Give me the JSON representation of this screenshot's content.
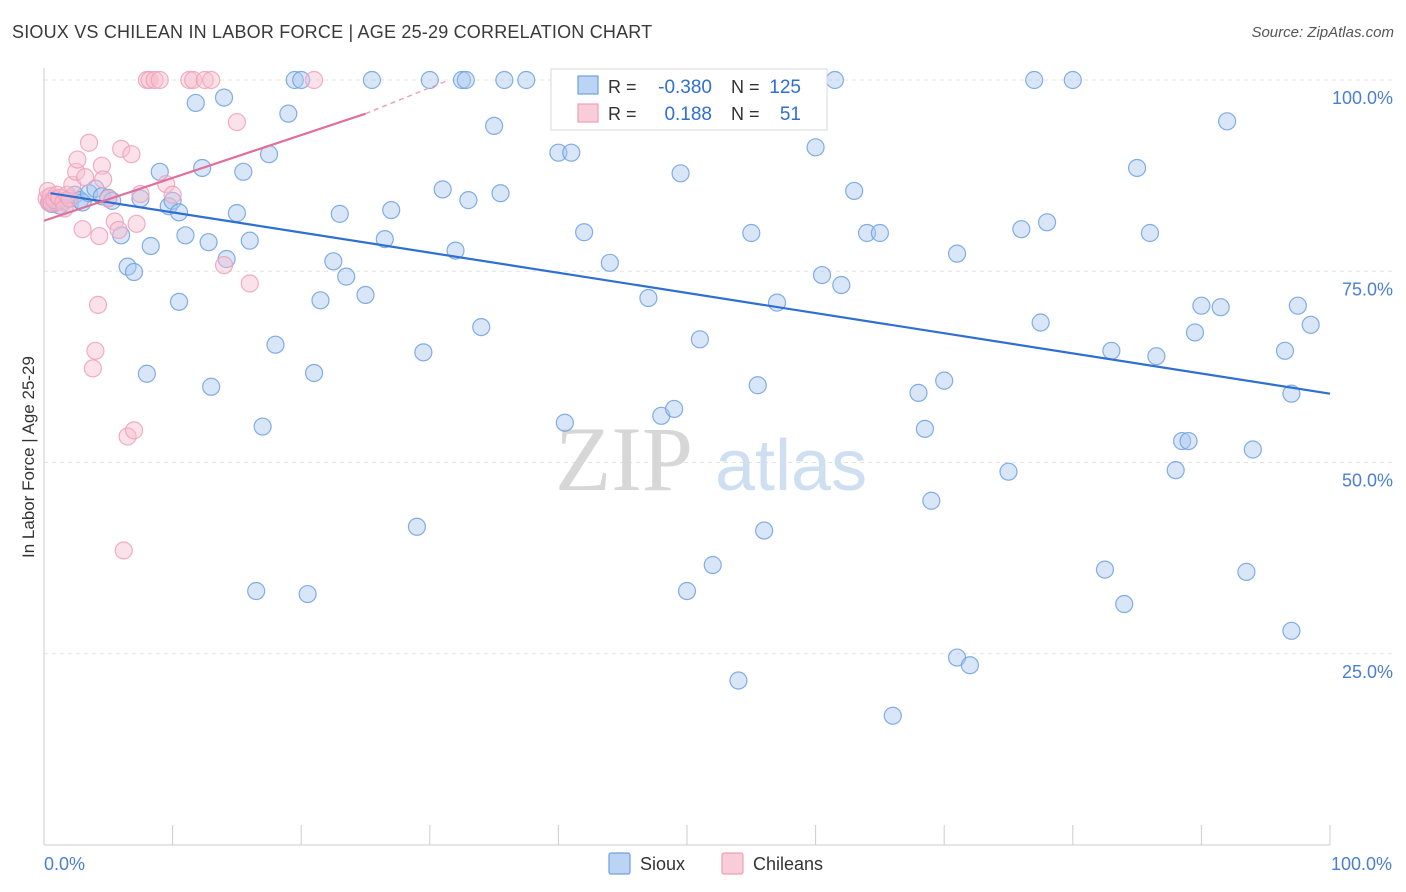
{
  "header": {
    "title": "SIOUX VS CHILEAN IN LABOR FORCE | AGE 25-29 CORRELATION CHART",
    "source": "Source: ZipAtlas.com"
  },
  "watermark": {
    "zip": "ZIP",
    "atlas": "atlas"
  },
  "legend_box": {
    "rows": [
      {
        "r_label": "R =",
        "r_value": "-0.380",
        "n_label": "N =",
        "n_value": "125",
        "color": "#6fa0e0"
      },
      {
        "r_label": "R =",
        "r_value": "0.188",
        "n_label": "N =",
        "n_value": "51",
        "color": "#f0a0b8"
      }
    ]
  },
  "chart_data": {
    "type": "scatter",
    "title": "SIOUX VS CHILEAN IN LABOR FORCE | AGE 25-29 CORRELATION CHART",
    "ylabel": "In Labor Force | Age 25-29",
    "xlabel": "",
    "xlim": [
      0,
      100
    ],
    "ylim": [
      0,
      100
    ],
    "x_tick_labels": {
      "left": "0.0%",
      "right": "100.0%"
    },
    "y_ticks": [
      {
        "value": 25,
        "label": "25.0%"
      },
      {
        "value": 50,
        "label": "50.0%"
      },
      {
        "value": 75,
        "label": "75.0%"
      },
      {
        "value": 100,
        "label": "100.0%"
      }
    ],
    "grid": true,
    "legend_position": "bottom-center",
    "series": [
      {
        "name": "Sioux",
        "color": "#6fa0e0",
        "trend": {
          "x0": 0.5,
          "y0": 85.2,
          "x1": 100,
          "y1": 59
        },
        "points": [
          [
            0.4,
            84
          ],
          [
            0.5,
            84.2
          ],
          [
            0.6,
            83.8
          ],
          [
            0.8,
            84.5
          ],
          [
            1,
            84
          ],
          [
            1.2,
            83.6
          ],
          [
            1.6,
            84.2
          ],
          [
            2,
            83.8
          ],
          [
            2.4,
            85
          ],
          [
            2.8,
            84.3
          ],
          [
            3,
            84
          ],
          [
            3.5,
            85.2
          ],
          [
            4,
            85.8
          ],
          [
            4.5,
            84.8
          ],
          [
            5,
            84.6
          ],
          [
            5.3,
            84.2
          ],
          [
            6,
            79.7
          ],
          [
            6.5,
            75.6
          ],
          [
            7,
            74.9
          ],
          [
            7.5,
            84.5
          ],
          [
            8,
            61.6
          ],
          [
            8.3,
            78.3
          ],
          [
            9,
            88
          ],
          [
            9.7,
            83.5
          ],
          [
            10,
            84.2
          ],
          [
            10.5,
            82.7
          ],
          [
            10.5,
            71
          ],
          [
            11,
            79.7
          ],
          [
            11.8,
            97
          ],
          [
            12.3,
            88.5
          ],
          [
            12.8,
            78.8
          ],
          [
            13,
            59.9
          ],
          [
            14,
            97.7
          ],
          [
            14.2,
            76.6
          ],
          [
            15,
            82.6
          ],
          [
            15.5,
            88
          ],
          [
            16,
            79
          ],
          [
            16.5,
            33.2
          ],
          [
            17,
            54.7
          ],
          [
            17.5,
            90.3
          ],
          [
            18,
            65.4
          ],
          [
            19,
            95.6
          ],
          [
            19.5,
            100
          ],
          [
            20,
            100
          ],
          [
            20.5,
            32.8
          ],
          [
            21,
            61.7
          ],
          [
            21.5,
            71.2
          ],
          [
            22.5,
            76.3
          ],
          [
            23,
            82.5
          ],
          [
            23.5,
            74.3
          ],
          [
            25,
            71.9
          ],
          [
            25.5,
            100
          ],
          [
            26.5,
            79.2
          ],
          [
            27,
            83
          ],
          [
            29,
            41.6
          ],
          [
            29.5,
            64.4
          ],
          [
            30,
            100
          ],
          [
            31,
            85.7
          ],
          [
            32,
            77.7
          ],
          [
            32.5,
            100
          ],
          [
            32.8,
            100
          ],
          [
            33,
            84.3
          ],
          [
            34,
            67.7
          ],
          [
            35,
            94
          ],
          [
            35.5,
            85.2
          ],
          [
            35.8,
            100
          ],
          [
            37.5,
            100
          ],
          [
            40,
            90.5
          ],
          [
            40.5,
            55.2
          ],
          [
            41,
            90.5
          ],
          [
            42,
            80.1
          ],
          [
            44,
            76.1
          ],
          [
            47,
            71.5
          ],
          [
            48,
            56.1
          ],
          [
            49,
            57
          ],
          [
            49.5,
            87.8
          ],
          [
            50,
            33.2
          ],
          [
            51,
            66.1
          ],
          [
            52,
            36.6
          ],
          [
            54,
            21.5
          ],
          [
            55,
            80
          ],
          [
            55.5,
            60.1
          ],
          [
            56,
            41.1
          ],
          [
            57,
            70.9
          ],
          [
            58.5,
            100
          ],
          [
            60,
            91.2
          ],
          [
            60.5,
            74.5
          ],
          [
            61.5,
            100
          ],
          [
            62,
            73.2
          ],
          [
            63,
            85.5
          ],
          [
            64,
            80
          ],
          [
            65,
            80
          ],
          [
            66,
            16.9
          ],
          [
            68,
            59.1
          ],
          [
            68.5,
            54.4
          ],
          [
            69,
            45
          ],
          [
            70,
            60.7
          ],
          [
            71,
            24.5
          ],
          [
            71,
            77.3
          ],
          [
            72,
            23.5
          ],
          [
            75,
            48.8
          ],
          [
            76,
            80.5
          ],
          [
            77,
            100
          ],
          [
            77.5,
            68.3
          ],
          [
            78,
            81.4
          ],
          [
            80,
            100
          ],
          [
            82.5,
            36
          ],
          [
            83,
            64.6
          ],
          [
            84,
            31.5
          ],
          [
            85,
            88.5
          ],
          [
            86,
            80
          ],
          [
            86.5,
            63.9
          ],
          [
            88,
            49
          ],
          [
            88.5,
            52.8
          ],
          [
            89,
            52.8
          ],
          [
            89.5,
            67
          ],
          [
            90,
            70.5
          ],
          [
            91.5,
            70.3
          ],
          [
            92,
            94.6
          ],
          [
            93.5,
            35.7
          ],
          [
            94,
            51.7
          ],
          [
            96.5,
            64.6
          ],
          [
            97,
            59
          ],
          [
            97,
            28
          ],
          [
            97.5,
            70.5
          ],
          [
            98.5,
            68
          ]
        ]
      },
      {
        "name": "Chileans",
        "color": "#f0a0b8",
        "trend": {
          "x0": 0,
          "y0": 81.6,
          "x1": 25,
          "y1": 95.6,
          "dash_to_x": 31.5,
          "dash_to_y": 100
        },
        "points": [
          [
            0.2,
            84.5
          ],
          [
            0.3,
            85.5
          ],
          [
            0.4,
            84
          ],
          [
            0.5,
            84.8
          ],
          [
            0.6,
            83.9
          ],
          [
            0.8,
            84.3
          ],
          [
            1,
            85
          ],
          [
            1.2,
            84.6
          ],
          [
            1.5,
            84
          ],
          [
            1.6,
            83.2
          ],
          [
            1.8,
            85
          ],
          [
            2,
            84.5
          ],
          [
            2.2,
            86.3
          ],
          [
            2.5,
            88
          ],
          [
            2.6,
            89.6
          ],
          [
            3,
            80.5
          ],
          [
            3.2,
            87.3
          ],
          [
            3.5,
            91.8
          ],
          [
            3.8,
            62.3
          ],
          [
            4,
            64.6
          ],
          [
            4.2,
            70.6
          ],
          [
            4.3,
            79.6
          ],
          [
            4.5,
            88.8
          ],
          [
            4.6,
            87
          ],
          [
            5,
            84.5
          ],
          [
            5.5,
            81.5
          ],
          [
            5.8,
            80.4
          ],
          [
            6,
            91
          ],
          [
            6.2,
            38.5
          ],
          [
            6.5,
            53.4
          ],
          [
            6.8,
            90.3
          ],
          [
            7,
            54.2
          ],
          [
            7.2,
            81.2
          ],
          [
            7.5,
            85.1
          ],
          [
            8,
            100
          ],
          [
            8.2,
            100
          ],
          [
            8.6,
            100
          ],
          [
            9,
            100
          ],
          [
            9.5,
            86.4
          ],
          [
            10,
            85
          ],
          [
            11.3,
            100
          ],
          [
            11.6,
            100
          ],
          [
            12.5,
            100
          ],
          [
            13,
            100
          ],
          [
            14,
            75.8
          ],
          [
            15,
            94.5
          ],
          [
            16,
            73.4
          ],
          [
            21,
            100
          ]
        ]
      }
    ]
  }
}
